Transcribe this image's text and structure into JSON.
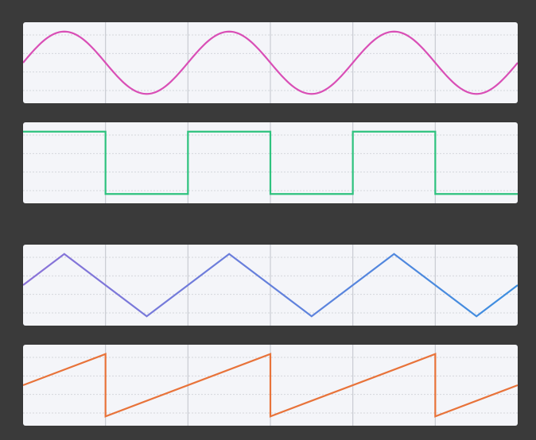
{
  "chart_data": [
    {
      "type": "line",
      "shape": "sine",
      "x": [
        0,
        0.125,
        0.25,
        0.375,
        0.5,
        0.625,
        0.75,
        0.875,
        1,
        1.125,
        1.25,
        1.375,
        1.5,
        1.625,
        1.75,
        1.875,
        2,
        2.125,
        2.25,
        2.375,
        2.5,
        2.625,
        2.75,
        2.875,
        3
      ],
      "y": [
        0,
        0.707,
        1,
        0.707,
        0,
        -0.707,
        -1,
        -0.707,
        0,
        0.707,
        1,
        0.707,
        0,
        -0.707,
        -1,
        -0.707,
        0,
        0.707,
        1,
        0.707,
        0,
        -0.707,
        -1,
        -0.707,
        0
      ],
      "xlim": [
        0,
        3
      ],
      "ylim": [
        -1.3,
        1.3
      ],
      "grid": true,
      "color": "#d94fb6"
    },
    {
      "type": "line",
      "shape": "square",
      "x": [
        0,
        0.5,
        0.5,
        1,
        1,
        1.5,
        1.5,
        2,
        2,
        2.5,
        2.5,
        3
      ],
      "y": [
        1,
        1,
        -1,
        -1,
        1,
        1,
        -1,
        -1,
        1,
        1,
        -1,
        -1
      ],
      "xlim": [
        0,
        3
      ],
      "ylim": [
        -1.3,
        1.3
      ],
      "grid": true,
      "color": "#2ec27e"
    },
    {
      "type": "line",
      "shape": "triangle",
      "x": [
        0,
        0.25,
        0.75,
        1.25,
        1.75,
        2.25,
        2.75,
        3
      ],
      "y": [
        0,
        1,
        -1,
        1,
        -1,
        1,
        -1,
        0
      ],
      "xlim": [
        0,
        3
      ],
      "ylim": [
        -1.3,
        1.3
      ],
      "grid": true,
      "color_start": "#8b72d8",
      "color_end": "#3d8fe0"
    },
    {
      "type": "line",
      "shape": "sawtooth",
      "x": [
        0,
        0.5,
        0.5,
        1.5,
        1.5,
        2.5,
        2.5,
        3
      ],
      "y": [
        0,
        1,
        -1,
        1,
        -1,
        1,
        -1,
        0
      ],
      "xlim": [
        0,
        3
      ],
      "ylim": [
        -1.3,
        1.3
      ],
      "grid": true,
      "color": "#e8733a"
    }
  ]
}
